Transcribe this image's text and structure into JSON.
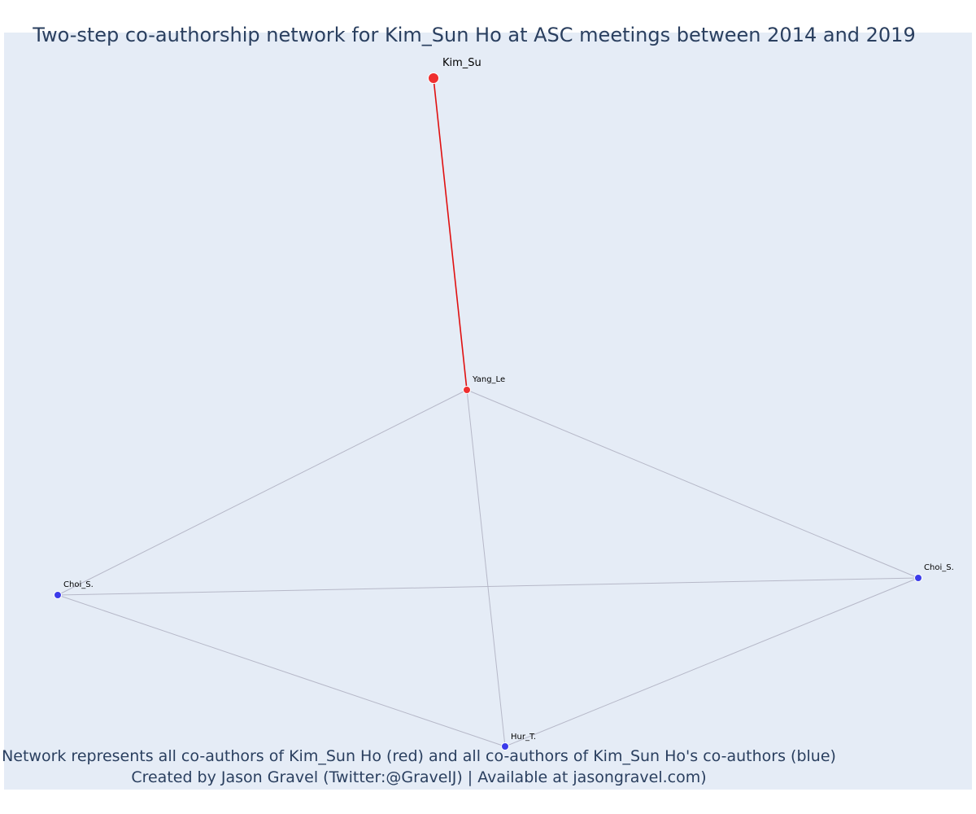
{
  "figure": {
    "title": "Two-step co-authorship network for Kim_Sun Ho at ASC meetings between 2014 and 2019",
    "footer_line_1": "Network represents all co-authors of Kim_Sun Ho (red) and all co-authors of Kim_Sun Ho's co-authors (blue)",
    "footer_line_2": "Created by Jason Gravel (Twitter:@GravelJ) | Available at jasongravel.com)"
  },
  "colors": {
    "plot_background": "#e5ecf6",
    "focal_node": "#ef2f2f",
    "coauthor_node": "#3b3bea",
    "focal_edge": "#e01010",
    "other_edge": "#b6b8c8",
    "title_text": "#2a3f5f"
  },
  "network": {
    "nodes": [
      {
        "id": "n1",
        "label": "Kim_Su",
        "group": "focal",
        "size": "large"
      },
      {
        "id": "n2",
        "label": "Yang_Le",
        "group": "co-author",
        "size": "small"
      },
      {
        "id": "n3",
        "label": "Choi_S.",
        "group": "second-step",
        "size": "small"
      },
      {
        "id": "n4",
        "label": "Choi_S.",
        "group": "second-step",
        "size": "small"
      },
      {
        "id": "n5",
        "label": "Hur_T.",
        "group": "second-step",
        "size": "small"
      }
    ],
    "edges": [
      {
        "source": "n1",
        "target": "n2",
        "type": "focal"
      },
      {
        "source": "n2",
        "target": "n3",
        "type": "other"
      },
      {
        "source": "n2",
        "target": "n4",
        "type": "other"
      },
      {
        "source": "n2",
        "target": "n5",
        "type": "other"
      },
      {
        "source": "n3",
        "target": "n4",
        "type": "other"
      },
      {
        "source": "n3",
        "target": "n5",
        "type": "other"
      },
      {
        "source": "n4",
        "target": "n5",
        "type": "other"
      }
    ]
  }
}
